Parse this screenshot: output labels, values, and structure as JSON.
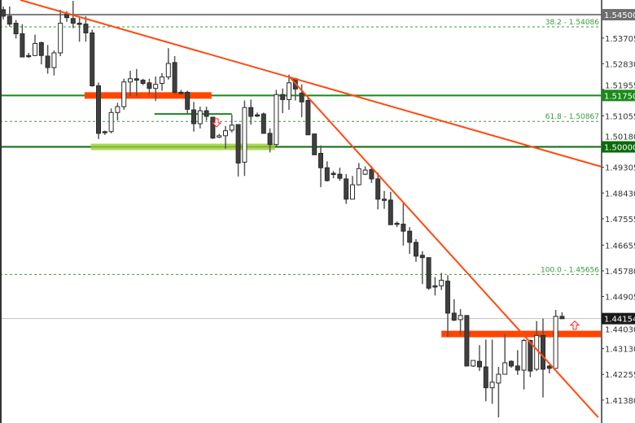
{
  "chart_data": {
    "type": "candlestick",
    "title": "",
    "xlabel": "",
    "ylabel": "",
    "ylim": [
      1.406,
      1.55
    ],
    "grid": false,
    "y_ticks": [
      "1.53705",
      "1.52830",
      "1.51955",
      "1.51055",
      "1.50180",
      "1.49305",
      "1.48430",
      "1.47555",
      "1.46655",
      "1.45780",
      "1.44905",
      "1.44030",
      "1.43130",
      "1.42255",
      "1.41380"
    ],
    "candles_ohlc": [
      [
        1.5467,
        1.5478,
        1.5434,
        1.5445
      ],
      [
        1.5445,
        1.5478,
        1.541,
        1.5418
      ],
      [
        1.5421,
        1.5432,
        1.5369,
        1.5385
      ],
      [
        1.5385,
        1.5418,
        1.5306,
        1.5306
      ],
      [
        1.5311,
        1.532,
        1.5303,
        1.5311
      ],
      [
        1.5311,
        1.5382,
        1.5309,
        1.5352
      ],
      [
        1.5355,
        1.5358,
        1.5281,
        1.5311
      ],
      [
        1.5309,
        1.5347,
        1.5249,
        1.527
      ],
      [
        1.527,
        1.5328,
        1.5243,
        1.532
      ],
      [
        1.532,
        1.5467,
        1.5309,
        1.5421
      ],
      [
        1.5451,
        1.5462,
        1.5426,
        1.544
      ],
      [
        1.5437,
        1.5497,
        1.5404,
        1.5421
      ],
      [
        1.5421,
        1.5445,
        1.5358,
        1.5421
      ],
      [
        1.5418,
        1.5445,
        1.5358,
        1.5388
      ],
      [
        1.5388,
        1.5399,
        1.5205,
        1.5208
      ],
      [
        1.5208,
        1.5219,
        1.5027,
        1.5046
      ],
      [
        1.5052,
        1.5055,
        1.5041,
        1.5052
      ],
      [
        1.5052,
        1.5131,
        1.5046,
        1.5117
      ],
      [
        1.5117,
        1.515,
        1.509,
        1.5137
      ],
      [
        1.5137,
        1.5232,
        1.5126,
        1.5221
      ],
      [
        1.5221,
        1.5259,
        1.5172,
        1.5232
      ],
      [
        1.5232,
        1.5265,
        1.5172,
        1.5227
      ],
      [
        1.5227,
        1.5232,
        1.521,
        1.5216
      ],
      [
        1.5218,
        1.5232,
        1.518,
        1.5199
      ],
      [
        1.5199,
        1.524,
        1.5156,
        1.5213
      ],
      [
        1.5216,
        1.5251,
        1.5191,
        1.5238
      ],
      [
        1.5238,
        1.5336,
        1.5229,
        1.5284
      ],
      [
        1.5287,
        1.5309,
        1.518,
        1.5186
      ],
      [
        1.5186,
        1.5194,
        1.5178,
        1.5186
      ],
      [
        1.5186,
        1.5191,
        1.5112,
        1.5128
      ],
      [
        1.5126,
        1.5153,
        1.5052,
        1.5079
      ],
      [
        1.5079,
        1.5137,
        1.5063,
        1.5123
      ],
      [
        1.5123,
        1.5137,
        1.509,
        1.5104
      ],
      [
        1.5101,
        1.5101,
        1.5027,
        1.503
      ],
      [
        1.5033,
        1.5044,
        1.503,
        1.5038
      ],
      [
        1.5038,
        1.5071,
        1.4994,
        1.5055
      ],
      [
        1.5057,
        1.5109,
        1.5049,
        1.5074
      ],
      [
        1.5076,
        1.5076,
        1.4899,
        1.4945
      ],
      [
        1.4948,
        1.5158,
        1.4901,
        1.5134
      ],
      [
        1.5134,
        1.5161,
        1.5076,
        1.5104
      ],
      [
        1.5109,
        1.5117,
        1.5101,
        1.5109
      ],
      [
        1.5112,
        1.5117,
        1.5046,
        1.5046
      ],
      [
        1.5046,
        1.5063,
        1.4981,
        1.5008
      ],
      [
        1.5008,
        1.5194,
        1.5003,
        1.5178
      ],
      [
        1.5178,
        1.5199,
        1.5115,
        1.5161
      ],
      [
        1.5161,
        1.5246,
        1.5126,
        1.5218
      ],
      [
        1.5232,
        1.5235,
        1.5158,
        1.5197
      ],
      [
        1.5183,
        1.5213,
        1.5101,
        1.5153
      ],
      [
        1.5158,
        1.5167,
        1.5041,
        1.5041
      ],
      [
        1.5044,
        1.5044,
        1.4973,
        1.4973
      ],
      [
        1.4978,
        1.5005,
        1.4863,
        1.4929
      ],
      [
        1.4929,
        1.4951,
        1.4882,
        1.4885
      ],
      [
        1.491,
        1.4918,
        1.4893,
        1.491
      ],
      [
        1.4907,
        1.4929,
        1.4885,
        1.4893
      ],
      [
        1.4891,
        1.4907,
        1.4806,
        1.4822
      ],
      [
        1.4822,
        1.4901,
        1.4822,
        1.4871
      ],
      [
        1.4871,
        1.4945,
        1.4869,
        1.4926
      ],
      [
        1.4907,
        1.4934,
        1.4904,
        1.4921
      ],
      [
        1.4923,
        1.4934,
        1.4877,
        1.4891
      ],
      [
        1.4891,
        1.4912,
        1.4787,
        1.4822
      ],
      [
        1.4822,
        1.485,
        1.4789,
        1.4822
      ],
      [
        1.4819,
        1.4847,
        1.4735,
        1.4735
      ],
      [
        1.474,
        1.4746,
        1.4727,
        1.474
      ],
      [
        1.4737,
        1.4811,
        1.4664,
        1.4713
      ],
      [
        1.4713,
        1.4727,
        1.4636,
        1.4675
      ],
      [
        1.4675,
        1.4686,
        1.4609,
        1.4628
      ],
      [
        1.4631,
        1.4645,
        1.4533,
        1.4623
      ],
      [
        1.4623,
        1.4623,
        1.4513,
        1.4519
      ],
      [
        1.4527,
        1.4557,
        1.4494,
        1.4527
      ],
      [
        1.4527,
        1.4571,
        1.4513,
        1.4546
      ],
      [
        1.4543,
        1.4563,
        1.4352,
        1.4434
      ],
      [
        1.4434,
        1.4481,
        1.4407,
        1.441
      ],
      [
        1.4412,
        1.4448,
        1.436,
        1.4426
      ],
      [
        1.4426,
        1.4426,
        1.4254,
        1.4254
      ],
      [
        1.4254,
        1.4273,
        1.4251,
        1.4273
      ],
      [
        1.427,
        1.4325,
        1.4237,
        1.4251
      ],
      [
        1.4251,
        1.4344,
        1.4134,
        1.418
      ],
      [
        1.418,
        1.4344,
        1.4125,
        1.4199
      ],
      [
        1.4196,
        1.4251,
        1.4079,
        1.4226
      ],
      [
        1.4226,
        1.4363,
        1.4226,
        1.4265
      ],
      [
        1.427,
        1.4273,
        1.4248,
        1.4254
      ],
      [
        1.4254,
        1.4308,
        1.4224,
        1.424
      ],
      [
        1.424,
        1.4347,
        1.4174,
        1.4341
      ],
      [
        1.4341,
        1.4344,
        1.4216,
        1.4237
      ],
      [
        1.4243,
        1.4407,
        1.4237,
        1.4358
      ],
      [
        1.4358,
        1.4415,
        1.4147,
        1.4243
      ],
      [
        1.4254,
        1.4257,
        1.4229,
        1.4246
      ],
      [
        1.4246,
        1.4445,
        1.4246,
        1.4423
      ],
      [
        1.4423,
        1.4437,
        1.4415,
        1.4415
      ]
    ],
    "horizontal_levels": [
      {
        "price": 1.545,
        "label": "1.54500",
        "color": "#808080",
        "style": "solid"
      },
      {
        "price": 1.5175,
        "label": "1.51750",
        "color": "#1a8a1a",
        "style": "solid"
      },
      {
        "price": 1.5,
        "label": "1.50000",
        "color": "#0a6a0a",
        "style": "solid"
      }
    ],
    "current_price": {
      "price": 1.44154,
      "label": "1.44154",
      "color": "#c0c0c0"
    },
    "fibonacci_levels": [
      {
        "price": 1.54086,
        "label": "38.2 - 1.54086"
      },
      {
        "price": 1.50867,
        "label": "61.8 - 1.50867"
      },
      {
        "price": 1.45656,
        "label": "100.0 - 1.45656"
      }
    ],
    "trendlines": [
      {
        "from": [
          2.7,
          1.55
        ],
        "to": [
          94.1,
          1.4933
        ],
        "color": "#ff4a10"
      },
      {
        "from": [
          45,
          1.524
        ],
        "to": [
          93.7,
          1.4079
        ],
        "color": "#ff4a10"
      }
    ],
    "zones": [
      {
        "from": 12.8,
        "to": 32.8,
        "price": 1.5175,
        "color": "#ff4500"
      },
      {
        "from": 69,
        "to": 96,
        "price": 1.4363,
        "color": "#ff4500"
      },
      {
        "from": 13.8,
        "to": 42.8,
        "price": 1.5,
        "color": "#9acd32"
      }
    ],
    "segments": [
      {
        "from": 23.8,
        "to": 36,
        "price": 1.5112,
        "color": "#1a8a1a"
      }
    ],
    "arrows": [
      {
        "index": 33.6,
        "price": 1.5082,
        "direction": "down",
        "color": "#ff2020"
      },
      {
        "index": 90,
        "price": 1.4393,
        "direction": "up",
        "color": "#ff2020"
      }
    ],
    "colors": {
      "bear": "#404040",
      "bull": "#ffffff",
      "outline": "#2a2a2a",
      "wick": "#555555"
    }
  }
}
